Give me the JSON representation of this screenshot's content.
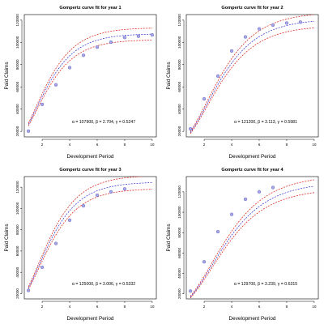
{
  "chart_data": [
    {
      "type": "scatter",
      "title": "Gompertz curve fit for year 1",
      "xlabel": "Development Period",
      "ylabel": "Paid Claims",
      "xlim": [
        0.7,
        10.3
      ],
      "ylim": [
        15000,
        125000
      ],
      "xticks": [
        "2",
        "4",
        "6",
        "8",
        "10"
      ],
      "yticks": [
        "20000",
        "40000",
        "60000",
        "80000",
        "100000",
        "120000"
      ],
      "annotation": "α = 107900, β = 2.704, γ = 0.5247",
      "points": {
        "x": [
          1,
          2,
          3,
          4,
          5,
          6,
          7,
          8,
          9,
          10
        ],
        "y": [
          20200,
          44200,
          61800,
          77300,
          88400,
          95700,
          100200,
          104400,
          105500,
          106700
        ]
      },
      "fit": {
        "alpha": 107900,
        "beta": 2.704,
        "gamma": 0.5247,
        "xmax": 10
      },
      "band_pct": 0.05
    },
    {
      "type": "scatter",
      "title": "Gompertz curve fit for year 2",
      "xlabel": "Development Period",
      "ylabel": "Paid Claims",
      "xlim": [
        0.7,
        10.3
      ],
      "ylim": [
        15000,
        125000
      ],
      "xticks": [
        "2",
        "4",
        "6",
        "8",
        "10"
      ],
      "yticks": [
        "20000",
        "40000",
        "60000",
        "80000",
        "100000",
        "120000"
      ],
      "annotation": "α = 121200, β = 3.113, γ = 0.5981",
      "points": {
        "x": [
          1,
          2,
          3,
          4,
          5,
          6,
          7,
          8,
          9
        ],
        "y": [
          22200,
          49200,
          69700,
          92300,
          104900,
          112100,
          115500,
          117400,
          118200
        ]
      },
      "fit": {
        "alpha": 121200,
        "beta": 3.113,
        "gamma": 0.5981,
        "xmax": 10
      },
      "band_pct": 0.05
    },
    {
      "type": "scatter",
      "title": "Gompertz curve fit for year 3",
      "xlabel": "Development Period",
      "ylabel": "Paid Claims",
      "xlim": [
        0.7,
        10.3
      ],
      "ylim": [
        15000,
        130000
      ],
      "xticks": [
        "2",
        "4",
        "6",
        "8",
        "10"
      ],
      "yticks": [
        "20000",
        "40000",
        "60000",
        "80000",
        "100000",
        "120000"
      ],
      "annotation": "α = 125000, β = 3.006, γ = 0.5332",
      "points": {
        "x": [
          1,
          2,
          3,
          4,
          5,
          6,
          7,
          8
        ],
        "y": [
          22900,
          44700,
          67100,
          89000,
          102500,
          112500,
          115600,
          118400
        ]
      },
      "fit": {
        "alpha": 125000,
        "beta": 3.006,
        "gamma": 0.5332,
        "xmax": 10
      },
      "band_pct": 0.05
    },
    {
      "type": "scatter",
      "title": "Gompertz curve fit for year 4",
      "xlabel": "Development Period",
      "ylabel": "Paid Claims",
      "xlim": [
        0.7,
        10.3
      ],
      "ylim": [
        15000,
        135000
      ],
      "xticks": [
        "2",
        "4",
        "6",
        "8",
        "10"
      ],
      "yticks": [
        "20000",
        "40000",
        "60000",
        "80000",
        "100000",
        "120000"
      ],
      "annotation": "α = 129700, β = 3.239, γ = 0.6315",
      "points": {
        "x": [
          1,
          2,
          3,
          4,
          5,
          6,
          7
        ],
        "y": [
          22700,
          51400,
          80900,
          97900,
          112800,
          120100,
          124300
        ]
      },
      "fit": {
        "alpha": 129700,
        "beta": 3.239,
        "gamma": 0.6315,
        "xmax": 10
      },
      "band_pct": 0.05
    }
  ]
}
